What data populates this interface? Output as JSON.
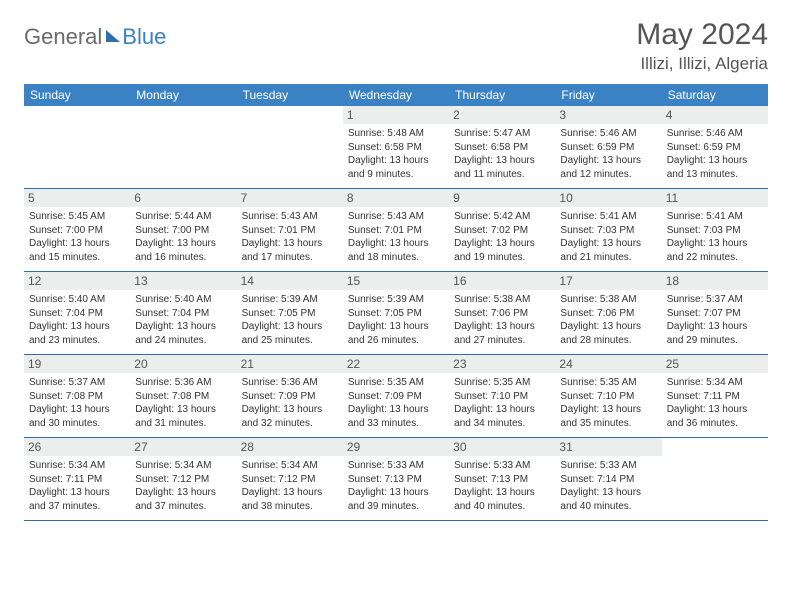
{
  "logo": {
    "text1": "General",
    "text2": "Blue"
  },
  "title": "May 2024",
  "location": "Illizi, Illizi, Algeria",
  "header_bg": "#3b82c4",
  "weekday_labels": [
    "Sunday",
    "Monday",
    "Tuesday",
    "Wednesday",
    "Thursday",
    "Friday",
    "Saturday"
  ],
  "weeks": [
    [
      {
        "n": "",
        "sr": "",
        "ss": "",
        "dl": ""
      },
      {
        "n": "",
        "sr": "",
        "ss": "",
        "dl": ""
      },
      {
        "n": "",
        "sr": "",
        "ss": "",
        "dl": ""
      },
      {
        "n": "1",
        "sr": "Sunrise: 5:48 AM",
        "ss": "Sunset: 6:58 PM",
        "dl": "Daylight: 13 hours and 9 minutes."
      },
      {
        "n": "2",
        "sr": "Sunrise: 5:47 AM",
        "ss": "Sunset: 6:58 PM",
        "dl": "Daylight: 13 hours and 11 minutes."
      },
      {
        "n": "3",
        "sr": "Sunrise: 5:46 AM",
        "ss": "Sunset: 6:59 PM",
        "dl": "Daylight: 13 hours and 12 minutes."
      },
      {
        "n": "4",
        "sr": "Sunrise: 5:46 AM",
        "ss": "Sunset: 6:59 PM",
        "dl": "Daylight: 13 hours and 13 minutes."
      }
    ],
    [
      {
        "n": "5",
        "sr": "Sunrise: 5:45 AM",
        "ss": "Sunset: 7:00 PM",
        "dl": "Daylight: 13 hours and 15 minutes."
      },
      {
        "n": "6",
        "sr": "Sunrise: 5:44 AM",
        "ss": "Sunset: 7:00 PM",
        "dl": "Daylight: 13 hours and 16 minutes."
      },
      {
        "n": "7",
        "sr": "Sunrise: 5:43 AM",
        "ss": "Sunset: 7:01 PM",
        "dl": "Daylight: 13 hours and 17 minutes."
      },
      {
        "n": "8",
        "sr": "Sunrise: 5:43 AM",
        "ss": "Sunset: 7:01 PM",
        "dl": "Daylight: 13 hours and 18 minutes."
      },
      {
        "n": "9",
        "sr": "Sunrise: 5:42 AM",
        "ss": "Sunset: 7:02 PM",
        "dl": "Daylight: 13 hours and 19 minutes."
      },
      {
        "n": "10",
        "sr": "Sunrise: 5:41 AM",
        "ss": "Sunset: 7:03 PM",
        "dl": "Daylight: 13 hours and 21 minutes."
      },
      {
        "n": "11",
        "sr": "Sunrise: 5:41 AM",
        "ss": "Sunset: 7:03 PM",
        "dl": "Daylight: 13 hours and 22 minutes."
      }
    ],
    [
      {
        "n": "12",
        "sr": "Sunrise: 5:40 AM",
        "ss": "Sunset: 7:04 PM",
        "dl": "Daylight: 13 hours and 23 minutes."
      },
      {
        "n": "13",
        "sr": "Sunrise: 5:40 AM",
        "ss": "Sunset: 7:04 PM",
        "dl": "Daylight: 13 hours and 24 minutes."
      },
      {
        "n": "14",
        "sr": "Sunrise: 5:39 AM",
        "ss": "Sunset: 7:05 PM",
        "dl": "Daylight: 13 hours and 25 minutes."
      },
      {
        "n": "15",
        "sr": "Sunrise: 5:39 AM",
        "ss": "Sunset: 7:05 PM",
        "dl": "Daylight: 13 hours and 26 minutes."
      },
      {
        "n": "16",
        "sr": "Sunrise: 5:38 AM",
        "ss": "Sunset: 7:06 PM",
        "dl": "Daylight: 13 hours and 27 minutes."
      },
      {
        "n": "17",
        "sr": "Sunrise: 5:38 AM",
        "ss": "Sunset: 7:06 PM",
        "dl": "Daylight: 13 hours and 28 minutes."
      },
      {
        "n": "18",
        "sr": "Sunrise: 5:37 AM",
        "ss": "Sunset: 7:07 PM",
        "dl": "Daylight: 13 hours and 29 minutes."
      }
    ],
    [
      {
        "n": "19",
        "sr": "Sunrise: 5:37 AM",
        "ss": "Sunset: 7:08 PM",
        "dl": "Daylight: 13 hours and 30 minutes."
      },
      {
        "n": "20",
        "sr": "Sunrise: 5:36 AM",
        "ss": "Sunset: 7:08 PM",
        "dl": "Daylight: 13 hours and 31 minutes."
      },
      {
        "n": "21",
        "sr": "Sunrise: 5:36 AM",
        "ss": "Sunset: 7:09 PM",
        "dl": "Daylight: 13 hours and 32 minutes."
      },
      {
        "n": "22",
        "sr": "Sunrise: 5:35 AM",
        "ss": "Sunset: 7:09 PM",
        "dl": "Daylight: 13 hours and 33 minutes."
      },
      {
        "n": "23",
        "sr": "Sunrise: 5:35 AM",
        "ss": "Sunset: 7:10 PM",
        "dl": "Daylight: 13 hours and 34 minutes."
      },
      {
        "n": "24",
        "sr": "Sunrise: 5:35 AM",
        "ss": "Sunset: 7:10 PM",
        "dl": "Daylight: 13 hours and 35 minutes."
      },
      {
        "n": "25",
        "sr": "Sunrise: 5:34 AM",
        "ss": "Sunset: 7:11 PM",
        "dl": "Daylight: 13 hours and 36 minutes."
      }
    ],
    [
      {
        "n": "26",
        "sr": "Sunrise: 5:34 AM",
        "ss": "Sunset: 7:11 PM",
        "dl": "Daylight: 13 hours and 37 minutes."
      },
      {
        "n": "27",
        "sr": "Sunrise: 5:34 AM",
        "ss": "Sunset: 7:12 PM",
        "dl": "Daylight: 13 hours and 37 minutes."
      },
      {
        "n": "28",
        "sr": "Sunrise: 5:34 AM",
        "ss": "Sunset: 7:12 PM",
        "dl": "Daylight: 13 hours and 38 minutes."
      },
      {
        "n": "29",
        "sr": "Sunrise: 5:33 AM",
        "ss": "Sunset: 7:13 PM",
        "dl": "Daylight: 13 hours and 39 minutes."
      },
      {
        "n": "30",
        "sr": "Sunrise: 5:33 AM",
        "ss": "Sunset: 7:13 PM",
        "dl": "Daylight: 13 hours and 40 minutes."
      },
      {
        "n": "31",
        "sr": "Sunrise: 5:33 AM",
        "ss": "Sunset: 7:14 PM",
        "dl": "Daylight: 13 hours and 40 minutes."
      },
      {
        "n": "",
        "sr": "",
        "ss": "",
        "dl": ""
      }
    ]
  ]
}
